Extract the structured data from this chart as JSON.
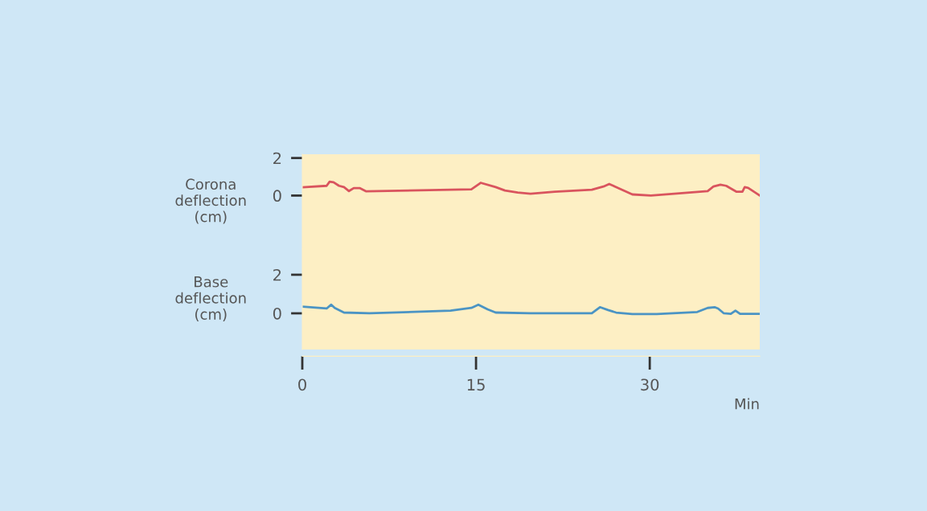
{
  "chart_data": [
    {
      "type": "line",
      "ylabel": "Corona deflection (cm)",
      "xlim": [
        0,
        39.5
      ],
      "xticks": [
        0,
        15,
        30
      ],
      "ylim": [
        -2.85,
        2.2
      ],
      "yticks": [
        0,
        2
      ],
      "tick_labels": "y",
      "grid": false,
      "legend": false,
      "series": [
        {
          "color": "#d9545e",
          "x": [
            0,
            2.1,
            2.36,
            2.7,
            3.17,
            3.6,
            4.03,
            4.44,
            4.95,
            5.49,
            14.6,
            15.4,
            16.7,
            17.5,
            18.6,
            19.7,
            21.8,
            25.0,
            26.0,
            26.5,
            27.0,
            28.5,
            30.1,
            35.0,
            35.5,
            36.1,
            36.6,
            37.5,
            38.0,
            38.2,
            38.5,
            39.5
          ],
          "values": [
            0.44,
            0.52,
            0.74,
            0.71,
            0.52,
            0.45,
            0.24,
            0.4,
            0.4,
            0.23,
            0.33,
            0.68,
            0.45,
            0.27,
            0.16,
            0.1,
            0.2,
            0.31,
            0.48,
            0.62,
            0.48,
            0.06,
            0.0,
            0.24,
            0.48,
            0.58,
            0.52,
            0.2,
            0.2,
            0.45,
            0.41,
            0.0
          ]
        }
      ]
    },
    {
      "type": "line",
      "ylabel": "Base deflection (cm)",
      "xlabel": "Min",
      "xlim": [
        0,
        39.5
      ],
      "xticks": [
        0,
        15,
        30
      ],
      "ylim": [
        -1.875,
        3.33
      ],
      "yticks": [
        0,
        2
      ],
      "grid": false,
      "legend": false,
      "series": [
        {
          "color": "#4b94c4",
          "x": [
            0,
            2.1,
            2.5,
            2.8,
            3.6,
            5.8,
            12.8,
            14.6,
            15.2,
            16.0,
            16.7,
            19.7,
            25.0,
            25.7,
            26.4,
            27.1,
            28.5,
            30.6,
            34.1,
            35.0,
            35.6,
            35.9,
            36.4,
            37.0,
            37.4,
            37.8,
            39.4
          ],
          "values": [
            0.35,
            0.25,
            0.45,
            0.28,
            0.04,
            0.0,
            0.14,
            0.28,
            0.45,
            0.21,
            0.04,
            0.0,
            0.0,
            0.32,
            0.17,
            0.04,
            -0.04,
            -0.04,
            0.07,
            0.28,
            0.32,
            0.25,
            0.0,
            -0.03,
            0.14,
            -0.03,
            -0.03
          ]
        }
      ]
    }
  ]
}
